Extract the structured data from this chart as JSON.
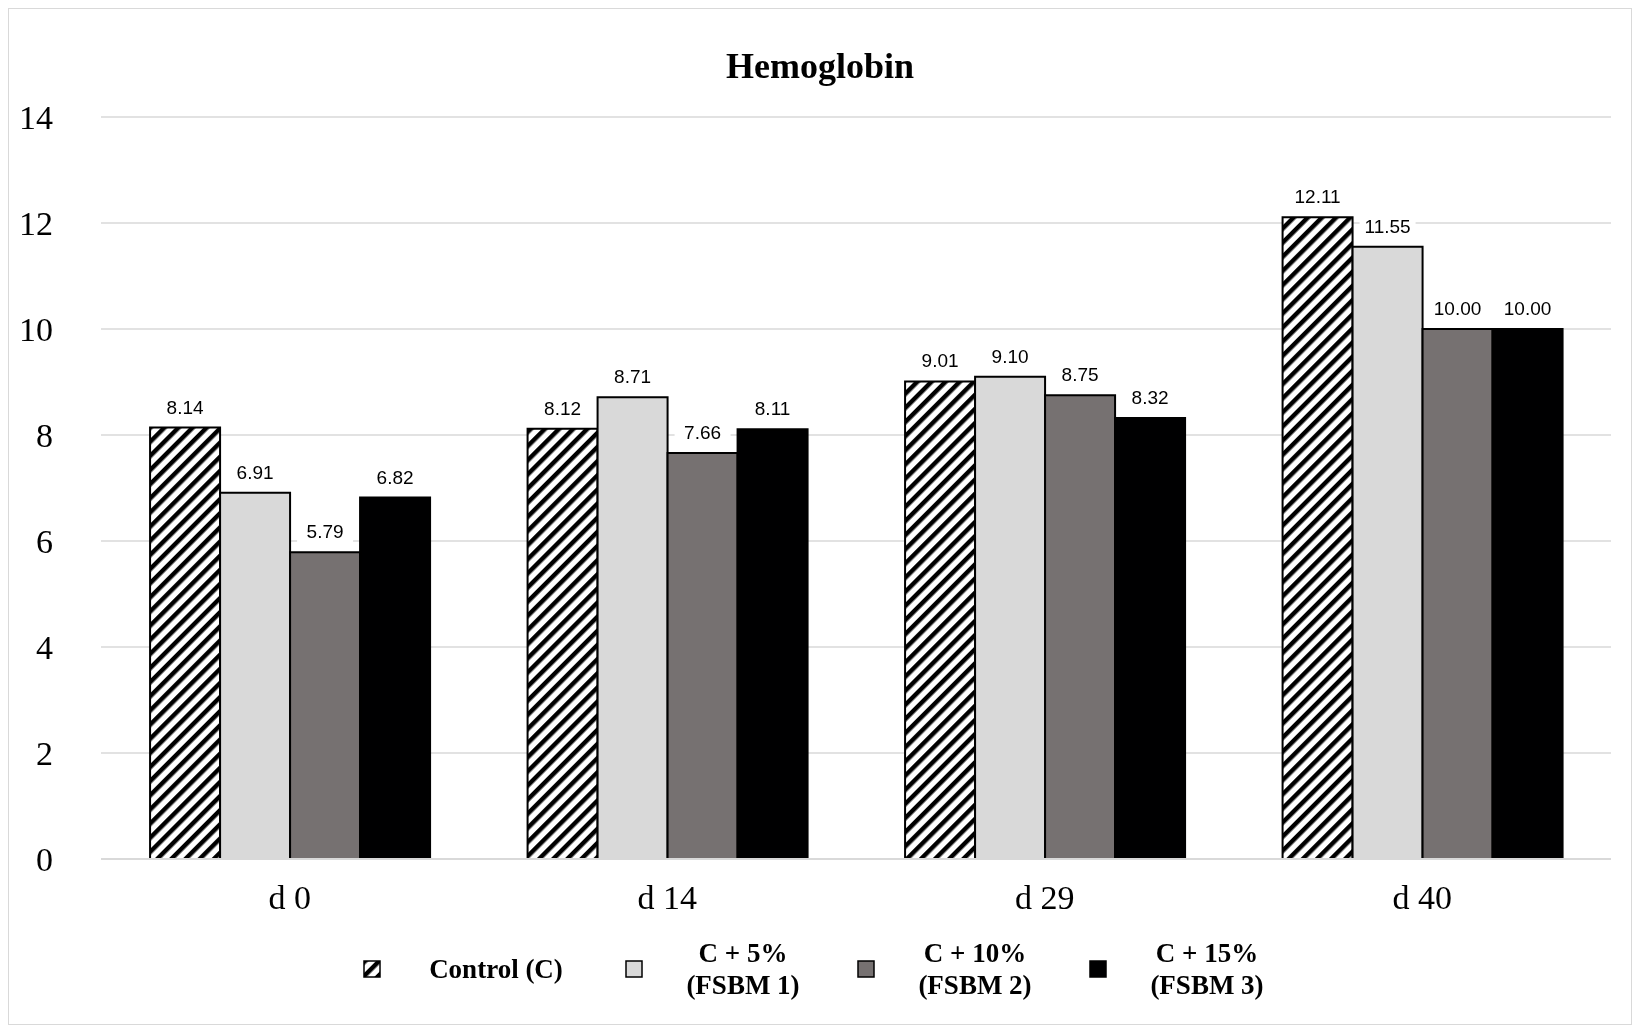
{
  "chart_data": {
    "type": "bar",
    "title": "Hemoglobin",
    "categories": [
      "d 0",
      "d 14",
      "d 29",
      "d 40"
    ],
    "series": [
      {
        "name": "Control (C)",
        "color": "#000000",
        "values": [
          8.14,
          8.12,
          9.01,
          12.11
        ],
        "value_labels": [
          "8.14",
          "8.12",
          "9.01",
          "12.11"
        ]
      },
      {
        "name": "C + 5% (FSBM 1)",
        "color": "#d9d9d9",
        "values": [
          6.91,
          8.71,
          9.1,
          11.55
        ],
        "value_labels": [
          "6.91",
          "8.71",
          "9.10",
          "11.55"
        ]
      },
      {
        "name": "C + 10% (FSBM 2)",
        "color": "#767171",
        "values": [
          5.79,
          7.66,
          8.75,
          10.0
        ],
        "value_labels": [
          "5.79",
          "7.66",
          "8.75",
          "10.00"
        ]
      },
      {
        "name": "C + 15% (FSBM 3)",
        "color": "#000001",
        "values": [
          6.82,
          8.11,
          8.32,
          10.0
        ],
        "value_labels": [
          "6.82",
          "8.11",
          "8.32",
          "10.00"
        ]
      }
    ],
    "ylim": [
      0,
      14
    ],
    "yticks": [
      0,
      2,
      4,
      6,
      8,
      10,
      12,
      14
    ],
    "grid": "y",
    "legend": "bottom"
  }
}
